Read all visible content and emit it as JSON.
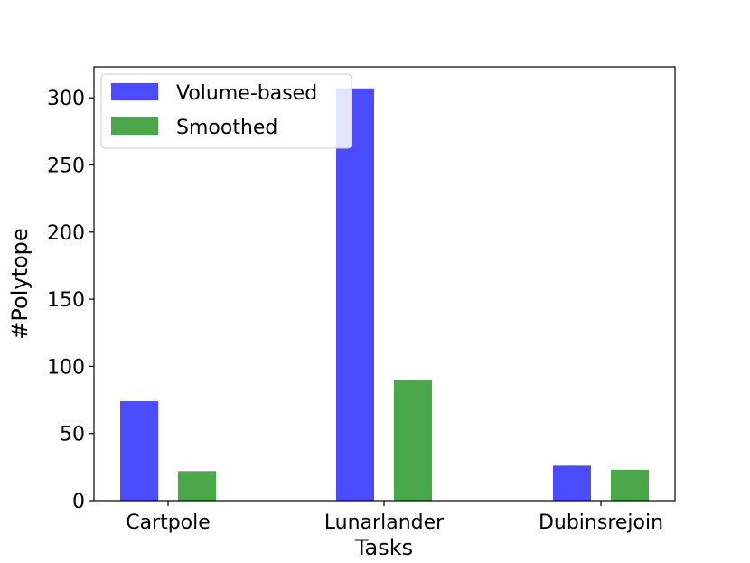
{
  "chart_data": {
    "type": "bar",
    "title": "",
    "xlabel": "Tasks",
    "ylabel": "#Polytope",
    "categories": [
      "Cartpole",
      "Lunarlander",
      "Dubinsrejoin"
    ],
    "series": [
      {
        "name": "Volume-based",
        "color": "#4b4bff",
        "values": [
          74,
          307,
          26
        ]
      },
      {
        "name": "Smoothed",
        "color": "#4aa84a",
        "values": [
          22,
          90,
          23
        ]
      }
    ],
    "ylim": [
      0,
      323
    ],
    "yticks": [
      0,
      50,
      100,
      150,
      200,
      250,
      300
    ],
    "grid": false,
    "legend_position": "top-left"
  }
}
